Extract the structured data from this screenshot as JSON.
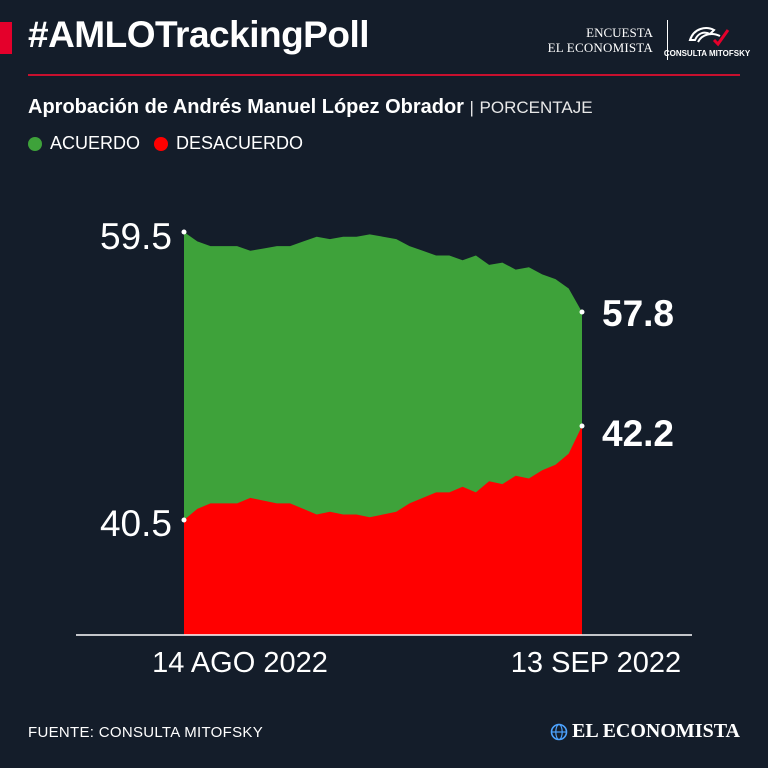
{
  "header": {
    "hashtag": "#AMLOTrackingPoll",
    "encuesta_label": "ENCUESTA",
    "publisher": "EL ECONOMISTA",
    "pollster_logo_text": "CONSULTA MITOFSKY"
  },
  "subtitle": {
    "main": "Aprobación de Andrés Manuel López Obrador",
    "separator": "|",
    "unit": "PORCENTAJE"
  },
  "legend": [
    {
      "label": "ACUERDO",
      "color": "#3ea23a"
    },
    {
      "label": "DESACUERDO",
      "color": "#ff0000"
    }
  ],
  "chart_data": {
    "type": "area",
    "x_start_label": "14 AGO 2022",
    "x_end_label": "13 SEP 2022",
    "ylim": [
      40.5,
      59.5
    ],
    "series": [
      {
        "name": "ACUERDO",
        "color": "#3ea23a",
        "values": [
          59.5,
          59.3,
          59.2,
          59.2,
          59.2,
          59.1,
          59.15,
          59.2,
          59.2,
          59.3,
          59.4,
          59.35,
          59.4,
          59.4,
          59.45,
          59.4,
          59.35,
          59.2,
          59.1,
          59.0,
          59.0,
          58.9,
          59.0,
          58.8,
          58.85,
          58.7,
          58.75,
          58.6,
          58.5,
          58.3,
          57.8
        ]
      },
      {
        "name": "DESACUERDO",
        "color": "#ff0000",
        "values": [
          40.5,
          40.7,
          40.8,
          40.8,
          40.8,
          40.9,
          40.85,
          40.8,
          40.8,
          40.7,
          40.6,
          40.65,
          40.6,
          40.6,
          40.55,
          40.6,
          40.65,
          40.8,
          40.9,
          41.0,
          41.0,
          41.1,
          41.0,
          41.2,
          41.15,
          41.3,
          41.25,
          41.4,
          41.5,
          41.7,
          42.2
        ]
      }
    ],
    "annotations": [
      {
        "label": "59.5",
        "series": "ACUERDO",
        "point": "first"
      },
      {
        "label": "40.5",
        "series": "DESACUERDO",
        "point": "first"
      },
      {
        "label": "57.8",
        "series": "ACUERDO",
        "point": "last"
      },
      {
        "label": "42.2",
        "series": "DESACUERDO",
        "point": "last"
      }
    ]
  },
  "footer": {
    "source": "FUENTE: CONSULTA MITOFSKY",
    "brand": "EL ECONOMISTA",
    "brand_icon": "globe-icon"
  }
}
